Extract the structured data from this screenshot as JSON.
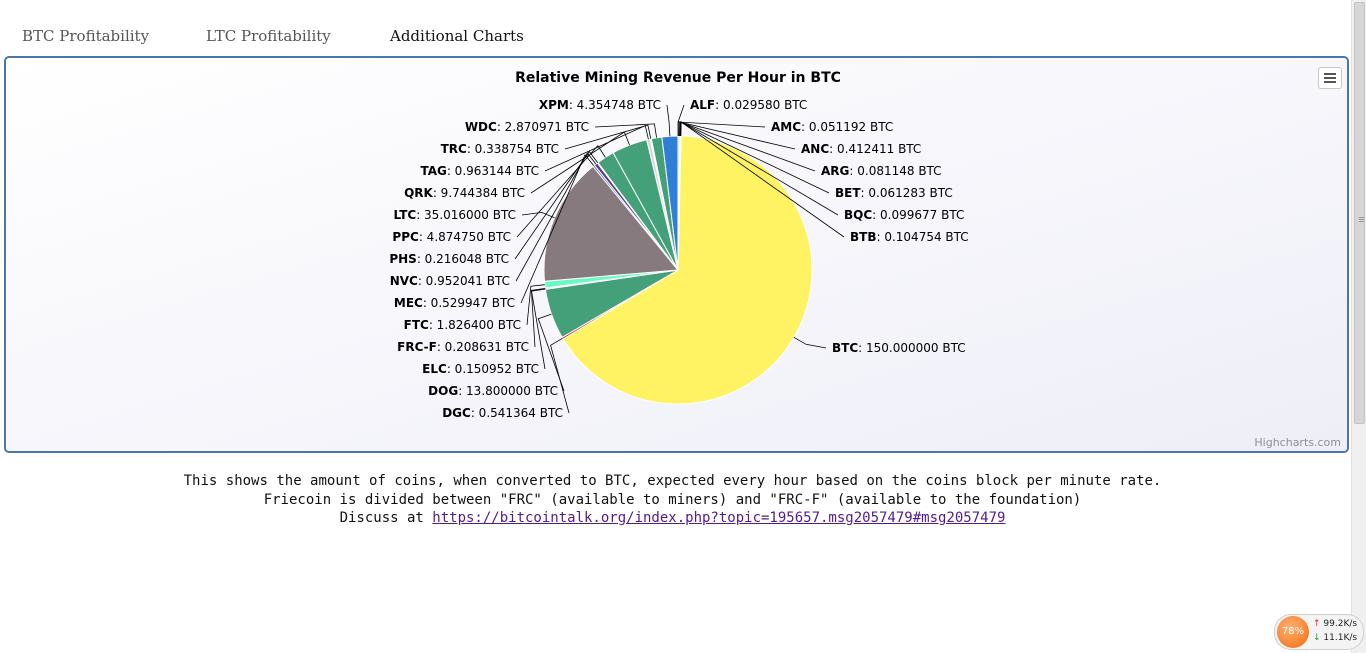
{
  "tabs": [
    "BTC Profitability",
    "LTC Profitability",
    "Additional Charts"
  ],
  "chart_data": {
    "type": "pie",
    "title": "Relative Mining Revenue Per Hour in BTC",
    "unit": "BTC",
    "credits": "Highcharts.com",
    "slices": [
      {
        "name": "ALF",
        "value": 0.02958,
        "label": "0.029580",
        "color": "#2f7ed8"
      },
      {
        "name": "AMC",
        "value": 0.051192,
        "label": "0.051192",
        "color": "#0d233a"
      },
      {
        "name": "ANC",
        "value": 0.412411,
        "label": "0.412411",
        "color": "#8bbc21"
      },
      {
        "name": "ARG",
        "value": 0.081148,
        "label": "0.081148",
        "color": "#910000"
      },
      {
        "name": "BET",
        "value": 0.061283,
        "label": "0.061283",
        "color": "#1aadce"
      },
      {
        "name": "BQC",
        "value": 0.099677,
        "label": "0.099677",
        "color": "#492970"
      },
      {
        "name": "BTB",
        "value": 0.104754,
        "label": "0.104754",
        "color": "#f28f43"
      },
      {
        "name": "BTC",
        "value": 150.0,
        "label": "150.000000",
        "color": "#fff263"
      },
      {
        "name": "DGC",
        "value": 0.541364,
        "label": "0.541364",
        "color": "#c42525"
      },
      {
        "name": "DOG",
        "value": 13.8,
        "label": "13.800000",
        "color": "#43a079"
      },
      {
        "name": "ELC",
        "value": 0.150952,
        "label": "0.150952",
        "color": "#6bb5a0"
      },
      {
        "name": "FRC-F",
        "value": 0.208631,
        "label": "0.208631",
        "color": "#aae0c8"
      },
      {
        "name": "FTC",
        "value": 1.8264,
        "label": "1.826400",
        "color": "#6af9c4"
      },
      {
        "name": "LTC",
        "value": 35.016,
        "label": "35.016000",
        "color": "#867a7e"
      },
      {
        "name": "MEC",
        "value": 0.529947,
        "label": "0.529947",
        "color": "#3a6fb0"
      },
      {
        "name": "NVC",
        "value": 0.952041,
        "label": "0.952041",
        "color": "#5c3b84"
      },
      {
        "name": "PHS",
        "value": 0.216048,
        "label": "0.216048",
        "color": "#c98a3a"
      },
      {
        "name": "PPC",
        "value": 4.87475,
        "label": "4.874750",
        "color": "#43a079"
      },
      {
        "name": "QRK",
        "value": 9.744384,
        "label": "9.744384",
        "color": "#43a079"
      },
      {
        "name": "TAG",
        "value": 0.963144,
        "label": "0.963144",
        "color": "#d8d8d8"
      },
      {
        "name": "TRC",
        "value": 0.338754,
        "label": "0.338754",
        "color": "#6af9c4"
      },
      {
        "name": "WDC",
        "value": 2.870971,
        "label": "2.870971",
        "color": "#43a079"
      },
      {
        "name": "XPM",
        "value": 4.354748,
        "label": "4.354748",
        "color": "#2f7ed8"
      }
    ]
  },
  "description": {
    "line1": "This shows the amount of coins, when converted to BTC, expected every hour based on the coins block per minute rate.",
    "line2": "Friecoin is divided between \"FRC\" (available to miners) and \"FRC-F\" (available to the foundation)",
    "line3_prefix": "Discuss at ",
    "link_text": "https://bitcointalk.org/index.php?topic=195657.msg2057479#msg2057479"
  },
  "tray": {
    "cpu": "78%",
    "up": "99.2K/s",
    "down": "11.1K/s"
  }
}
